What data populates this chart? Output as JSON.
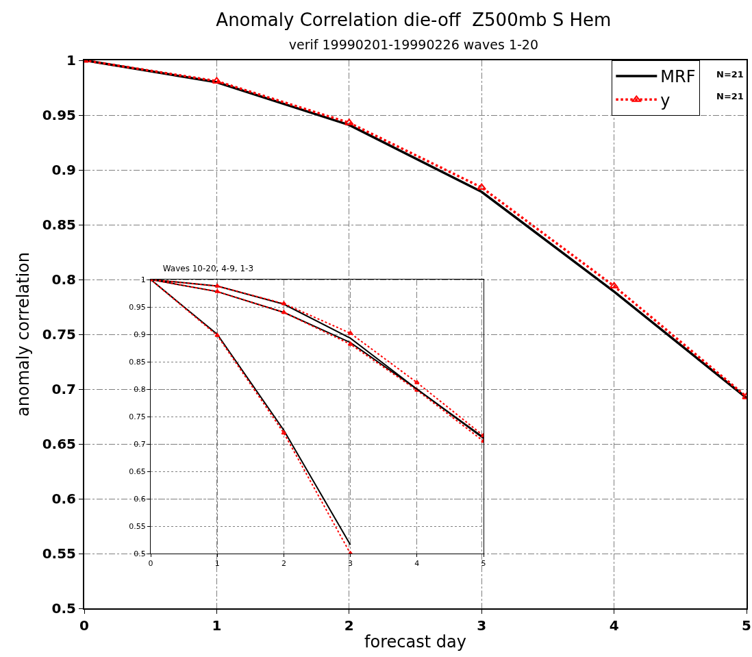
{
  "chart_data": [
    {
      "type": "line",
      "title": "Anomaly Correlation die-off  Z500mb S Hem",
      "subtitle": "verif 19990201-19990226 waves 1-20",
      "xlabel": "forecast day",
      "ylabel": "anomaly correlation",
      "x": [
        0,
        1,
        2,
        3,
        4,
        5
      ],
      "xlim": [
        0,
        5
      ],
      "xticks": [
        0,
        1,
        2,
        3,
        4,
        5
      ],
      "ylim": [
        0.5,
        1
      ],
      "yticks": [
        0.5,
        0.55,
        0.6,
        0.65,
        0.7,
        0.75,
        0.8,
        0.85,
        0.9,
        0.95,
        1
      ],
      "series": [
        {
          "name": "MRF",
          "color": "#000000",
          "line_style": "solid",
          "marker": "none",
          "values": [
            1,
            0.98,
            0.941,
            0.88,
            0.789,
            0.692
          ]
        },
        {
          "name": "y",
          "color": "#ff0000",
          "line_style": "dotted",
          "marker": "triangle",
          "values": [
            1,
            0.981,
            0.943,
            0.884,
            0.794,
            0.693
          ]
        }
      ],
      "grid": true,
      "legend": "top right",
      "annotations": [
        "N=21",
        "N=21"
      ]
    },
    {
      "type": "line",
      "title": "Waves 10-20, 4-9, 1-3",
      "x": [
        0,
        1,
        2,
        3,
        4,
        5
      ],
      "xlim": [
        0,
        5
      ],
      "xticks": [
        0,
        1,
        2,
        3,
        4,
        5
      ],
      "ylim": [
        0.5,
        1
      ],
      "yticks": [
        0.5,
        0.55,
        0.6,
        0.65,
        0.7,
        0.75,
        0.8,
        0.85,
        0.9,
        0.95,
        1
      ],
      "series": [
        {
          "color": "#000000",
          "line_style": "solid",
          "marker": "none",
          "values": [
            1,
            0.9,
            0.725,
            0.516,
            null,
            null
          ]
        },
        {
          "color": "#ff0000",
          "line_style": "dotted",
          "marker": "triangle",
          "values": [
            1,
            0.898,
            0.72,
            0.5,
            null,
            null
          ]
        },
        {
          "color": "#000000",
          "line_style": "solid",
          "marker": "none",
          "values": [
            1,
            0.978,
            0.94,
            0.885,
            0.8,
            0.71
          ]
        },
        {
          "color": "#ff0000",
          "line_style": "dotted",
          "marker": "triangle",
          "values": [
            1,
            0.978,
            0.94,
            0.882,
            0.798,
            0.705
          ]
        },
        {
          "color": "#000000",
          "line_style": "solid",
          "marker": "none",
          "values": [
            1,
            0.988,
            0.955,
            0.893,
            0.8,
            0.712
          ]
        },
        {
          "color": "#ff0000",
          "line_style": "dotted",
          "marker": "triangle",
          "values": [
            1,
            0.988,
            0.956,
            0.902,
            0.812,
            0.715
          ]
        }
      ],
      "grid": true
    }
  ]
}
